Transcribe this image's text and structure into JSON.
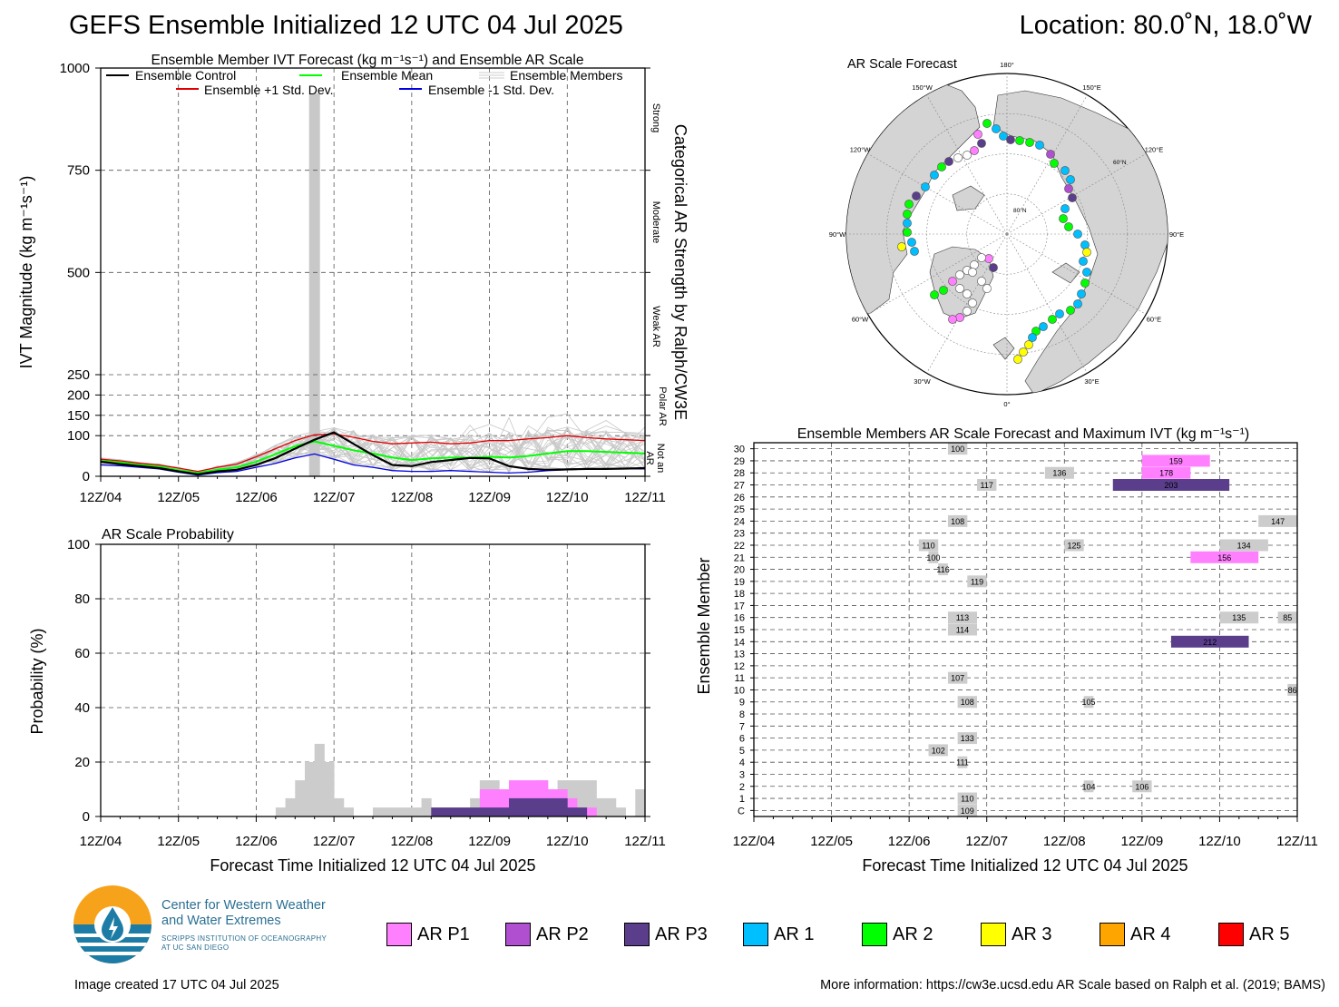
{
  "header": {
    "title": "GEFS Ensemble Initialized 12 UTC 04 Jul 2025",
    "location": "Location: 80.0˚N, 18.0˚W"
  },
  "ivt_panel": {
    "title": "Ensemble Member IVT Forecast (kg m⁻¹s⁻¹) and Ensemble AR Scale",
    "ylabel": "IVT Magnitude (kg m⁻¹s⁻¹)",
    "right_label": "Categorical AR Strength by Ralph/CW3E",
    "categories": [
      "Strong",
      "Moderate",
      "Weak AR",
      "Polar AR",
      "Not an AR"
    ],
    "legend": {
      "control": "Ensemble Control",
      "mean": "Ensemble Mean",
      "members": "Ensemble Members",
      "plus": "Ensemble +1 Std. Dev.",
      "minus": "Ensemble -1 Std. Dev."
    }
  },
  "prob_panel": {
    "title": "AR Scale Probability",
    "ylabel": "Probability (%)",
    "xlabel": "Forecast Time Initialized 12 UTC 04 Jul 2025"
  },
  "map_panel": {
    "title": "AR Scale Forecast",
    "lon_labels": [
      "180°",
      "150°E",
      "120°E",
      "90°E",
      "60°E",
      "30°E",
      "0°",
      "30°W",
      "60°W",
      "90°W",
      "120°W",
      "150°W"
    ],
    "lat_labels": [
      "80°N",
      "60°N"
    ]
  },
  "member_panel": {
    "title": "Ensemble Members AR Scale Forecast and Maximum IVT (kg m⁻¹s⁻¹)",
    "ylabel": "Ensemble Member",
    "xlabel": "Forecast Time Initialized 12 UTC 04 Jul 2025"
  },
  "legend": [
    {
      "label": "AR P1",
      "color": "#ff80ff"
    },
    {
      "label": "AR P2",
      "color": "#b050d0"
    },
    {
      "label": "AR P3",
      "color": "#5a3e8c"
    },
    {
      "label": "AR 1",
      "color": "#00bfff"
    },
    {
      "label": "AR 2",
      "color": "#00ff00"
    },
    {
      "label": "AR 3",
      "color": "#ffff00"
    },
    {
      "label": "AR 4",
      "color": "#ffa500"
    },
    {
      "label": "AR 5",
      "color": "#ff0000"
    }
  ],
  "logo": {
    "line1": "Center for Western Weather",
    "line2": "and Water Extremes",
    "line3": "SCRIPPS INSTITUTION OF OCEANOGRAPHY",
    "line4": "AT UC SAN DIEGO"
  },
  "footer": {
    "created": "Image created 17 UTC 04 Jul 2025",
    "info": "More information: https://cw3e.ucsd.edu AR Scale based on Ralph et al. (2019; BAMS)"
  },
  "chart_data": [
    {
      "type": "line",
      "title": "Ensemble Member IVT Forecast (kg m⁻¹s⁻¹) and Ensemble AR Scale",
      "x_ticks": [
        "12Z/04",
        "12Z/05",
        "12Z/06",
        "12Z/07",
        "12Z/08",
        "12Z/09",
        "12Z/10",
        "12Z/11"
      ],
      "y_ticks": [
        0,
        100,
        150,
        200,
        250,
        500,
        750,
        1000
      ],
      "ylim": [
        0,
        1000
      ],
      "y_scale": "piecewise",
      "x_hours": [
        0,
        6,
        12,
        18,
        24,
        30,
        36,
        42,
        48,
        54,
        60,
        66,
        72,
        78,
        84,
        90,
        96,
        102,
        108,
        114,
        120,
        126,
        132,
        138,
        144,
        150,
        156,
        162,
        168
      ],
      "series": [
        {
          "name": "Ensemble Control",
          "color": "#000000",
          "values": [
            36,
            30,
            25,
            20,
            12,
            5,
            12,
            16,
            28,
            45,
            68,
            90,
            108,
            80,
            52,
            28,
            25,
            35,
            40,
            45,
            44,
            25,
            18,
            16,
            17,
            18,
            18,
            19,
            20
          ]
        },
        {
          "name": "Ensemble Mean",
          "color": "#00ff00",
          "values": [
            38,
            34,
            28,
            24,
            15,
            8,
            16,
            22,
            36,
            55,
            74,
            86,
            75,
            64,
            56,
            46,
            40,
            44,
            46,
            46,
            48,
            46,
            50,
            56,
            62,
            62,
            60,
            58,
            56
          ]
        },
        {
          "name": "Ensemble +1 Std. Dev.",
          "color": "#e00000",
          "values": [
            42,
            38,
            32,
            28,
            20,
            12,
            22,
            30,
            48,
            68,
            88,
            102,
            104,
            96,
            86,
            80,
            82,
            84,
            80,
            82,
            88,
            88,
            92,
            95,
            100,
            95,
            92,
            90,
            88
          ]
        },
        {
          "name": "Ensemble -1 Std. Dev.",
          "color": "#0000e0",
          "values": [
            28,
            26,
            22,
            18,
            10,
            3,
            9,
            12,
            22,
            32,
            45,
            55,
            42,
            28,
            22,
            14,
            12,
            12,
            14,
            12,
            10,
            8,
            10,
            14,
            16,
            18,
            18,
            18,
            18
          ]
        }
      ],
      "grey_bar_at_hour": 66
    },
    {
      "type": "bar",
      "title": "AR Scale Probability",
      "ylim": [
        0,
        100
      ],
      "y_ticks": [
        0,
        20,
        40,
        60,
        80,
        100
      ],
      "x_ticks": [
        "12Z/04",
        "12Z/05",
        "12Z/06",
        "12Z/07",
        "12Z/08",
        "12Z/09",
        "12Z/10",
        "12Z/11"
      ],
      "bin_hours": 3,
      "series": [
        {
          "name": "Not an AR",
          "color": "#cccccc",
          "bins": [
            [
              54,
              3.3
            ],
            [
              57,
              6.7
            ],
            [
              60,
              13.3
            ],
            [
              63,
              20
            ],
            [
              66,
              26.7
            ],
            [
              69,
              20
            ],
            [
              72,
              6.7
            ],
            [
              75,
              3.3
            ],
            [
              84,
              3.3
            ],
            [
              87,
              3.3
            ],
            [
              90,
              3.3
            ],
            [
              93,
              3.3
            ],
            [
              96,
              3.3
            ],
            [
              99,
              6.7
            ],
            [
              114,
              6.7
            ],
            [
              117,
              13.3
            ],
            [
              120,
              13.3
            ],
            [
              135,
              13.3
            ],
            [
              141,
              13.3
            ],
            [
              144,
              13.3
            ],
            [
              147,
              13.3
            ],
            [
              150,
              13.3
            ],
            [
              153,
              6.7
            ],
            [
              156,
              6.7
            ],
            [
              159,
              3.3
            ],
            [
              165,
              10
            ]
          ]
        },
        {
          "name": "AR P1",
          "color": "#ff80ff",
          "bins": [
            [
              117,
              10
            ],
            [
              120,
              10
            ],
            [
              123,
              10
            ],
            [
              126,
              13.3
            ],
            [
              129,
              13.3
            ],
            [
              132,
              13.3
            ],
            [
              135,
              13.3
            ],
            [
              138,
              10
            ],
            [
              141,
              10
            ],
            [
              144,
              6.7
            ],
            [
              147,
              3.3
            ],
            [
              150,
              3.3
            ]
          ]
        },
        {
          "name": "AR P3",
          "color": "#5a3e8c",
          "bins": [
            [
              102,
              3.3
            ],
            [
              105,
              3.3
            ],
            [
              108,
              3.3
            ],
            [
              111,
              3.3
            ],
            [
              114,
              3.3
            ],
            [
              117,
              3.3
            ],
            [
              120,
              3.3
            ],
            [
              123,
              3.3
            ],
            [
              126,
              6.7
            ],
            [
              129,
              6.7
            ],
            [
              132,
              6.7
            ],
            [
              135,
              6.7
            ],
            [
              138,
              6.7
            ],
            [
              141,
              6.7
            ],
            [
              144,
              3.3
            ],
            [
              147,
              3.3
            ]
          ]
        }
      ]
    },
    {
      "type": "heatmap",
      "title": "Ensemble Members AR Scale Forecast and Maximum IVT (kg m⁻¹s⁻¹)",
      "rows": [
        "C",
        "1",
        "2",
        "3",
        "4",
        "5",
        "6",
        "7",
        "8",
        "9",
        "10",
        "11",
        "12",
        "13",
        "14",
        "15",
        "16",
        "17",
        "18",
        "19",
        "20",
        "21",
        "22",
        "23",
        "24",
        "25",
        "26",
        "27",
        "28",
        "29",
        "30"
      ],
      "x_ticks": [
        "12Z/04",
        "12Z/05",
        "12Z/06",
        "12Z/07",
        "12Z/08",
        "12Z/09",
        "12Z/10",
        "12Z/11"
      ],
      "events": [
        {
          "member": "30",
          "start": 60,
          "end": 66,
          "cat": "none",
          "ivt": 100
        },
        {
          "member": "29",
          "start": 120,
          "end": 141,
          "cat": "AR P1",
          "ivt": 159
        },
        {
          "member": "28",
          "start": 90,
          "end": 99,
          "cat": "none",
          "ivt": 136
        },
        {
          "member": "28",
          "start": 120,
          "end": 135,
          "cat": "AR P1",
          "ivt": 178
        },
        {
          "member": "27",
          "start": 69,
          "end": 75,
          "cat": "none",
          "ivt": 117
        },
        {
          "member": "27",
          "start": 111,
          "end": 147,
          "cat": "AR P3",
          "ivt": 203
        },
        {
          "member": "24",
          "start": 60,
          "end": 66,
          "cat": "none",
          "ivt": 108
        },
        {
          "member": "24",
          "start": 156,
          "end": 168,
          "cat": "none",
          "ivt": 147
        },
        {
          "member": "22",
          "start": 51,
          "end": 57,
          "cat": "none",
          "ivt": 110
        },
        {
          "member": "22",
          "start": 96,
          "end": 102,
          "cat": "none",
          "ivt": 125
        },
        {
          "member": "22",
          "start": 144,
          "end": 159,
          "cat": "none",
          "ivt": 134
        },
        {
          "member": "21",
          "start": 54,
          "end": 57,
          "cat": "none",
          "ivt": 100
        },
        {
          "member": "21",
          "start": 135,
          "end": 156,
          "cat": "AR P1",
          "ivt": 156
        },
        {
          "member": "20",
          "start": 57,
          "end": 60,
          "cat": "none",
          "ivt": 116
        },
        {
          "member": "19",
          "start": 66,
          "end": 72,
          "cat": "none",
          "ivt": 119
        },
        {
          "member": "16",
          "start": 60,
          "end": 69,
          "cat": "none",
          "ivt": 113
        },
        {
          "member": "16",
          "start": 144,
          "end": 156,
          "cat": "none",
          "ivt": 135
        },
        {
          "member": "16",
          "start": 162,
          "end": 168,
          "cat": "none",
          "ivt": 85
        },
        {
          "member": "15",
          "start": 60,
          "end": 69,
          "cat": "none",
          "ivt": 114
        },
        {
          "member": "14",
          "start": 129,
          "end": 153,
          "cat": "AR P3",
          "ivt": 212
        },
        {
          "member": "11",
          "start": 60,
          "end": 66,
          "cat": "none",
          "ivt": 107
        },
        {
          "member": "10",
          "start": 165,
          "end": 168,
          "cat": "none",
          "ivt": 86
        },
        {
          "member": "9",
          "start": 63,
          "end": 69,
          "cat": "none",
          "ivt": 108
        },
        {
          "member": "9",
          "start": 102,
          "end": 105,
          "cat": "none",
          "ivt": 105
        },
        {
          "member": "6",
          "start": 63,
          "end": 69,
          "cat": "none",
          "ivt": 133
        },
        {
          "member": "5",
          "start": 54,
          "end": 60,
          "cat": "none",
          "ivt": 102
        },
        {
          "member": "4",
          "start": 63,
          "end": 66,
          "cat": "none",
          "ivt": 111
        },
        {
          "member": "2",
          "start": 102,
          "end": 105,
          "cat": "none",
          "ivt": 104
        },
        {
          "member": "2",
          "start": 117,
          "end": 123,
          "cat": "none",
          "ivt": 106
        },
        {
          "member": "1",
          "start": 63,
          "end": 69,
          "cat": "none",
          "ivt": 110
        },
        {
          "member": "C",
          "start": 63,
          "end": 69,
          "cat": "none",
          "ivt": 109
        }
      ]
    }
  ]
}
